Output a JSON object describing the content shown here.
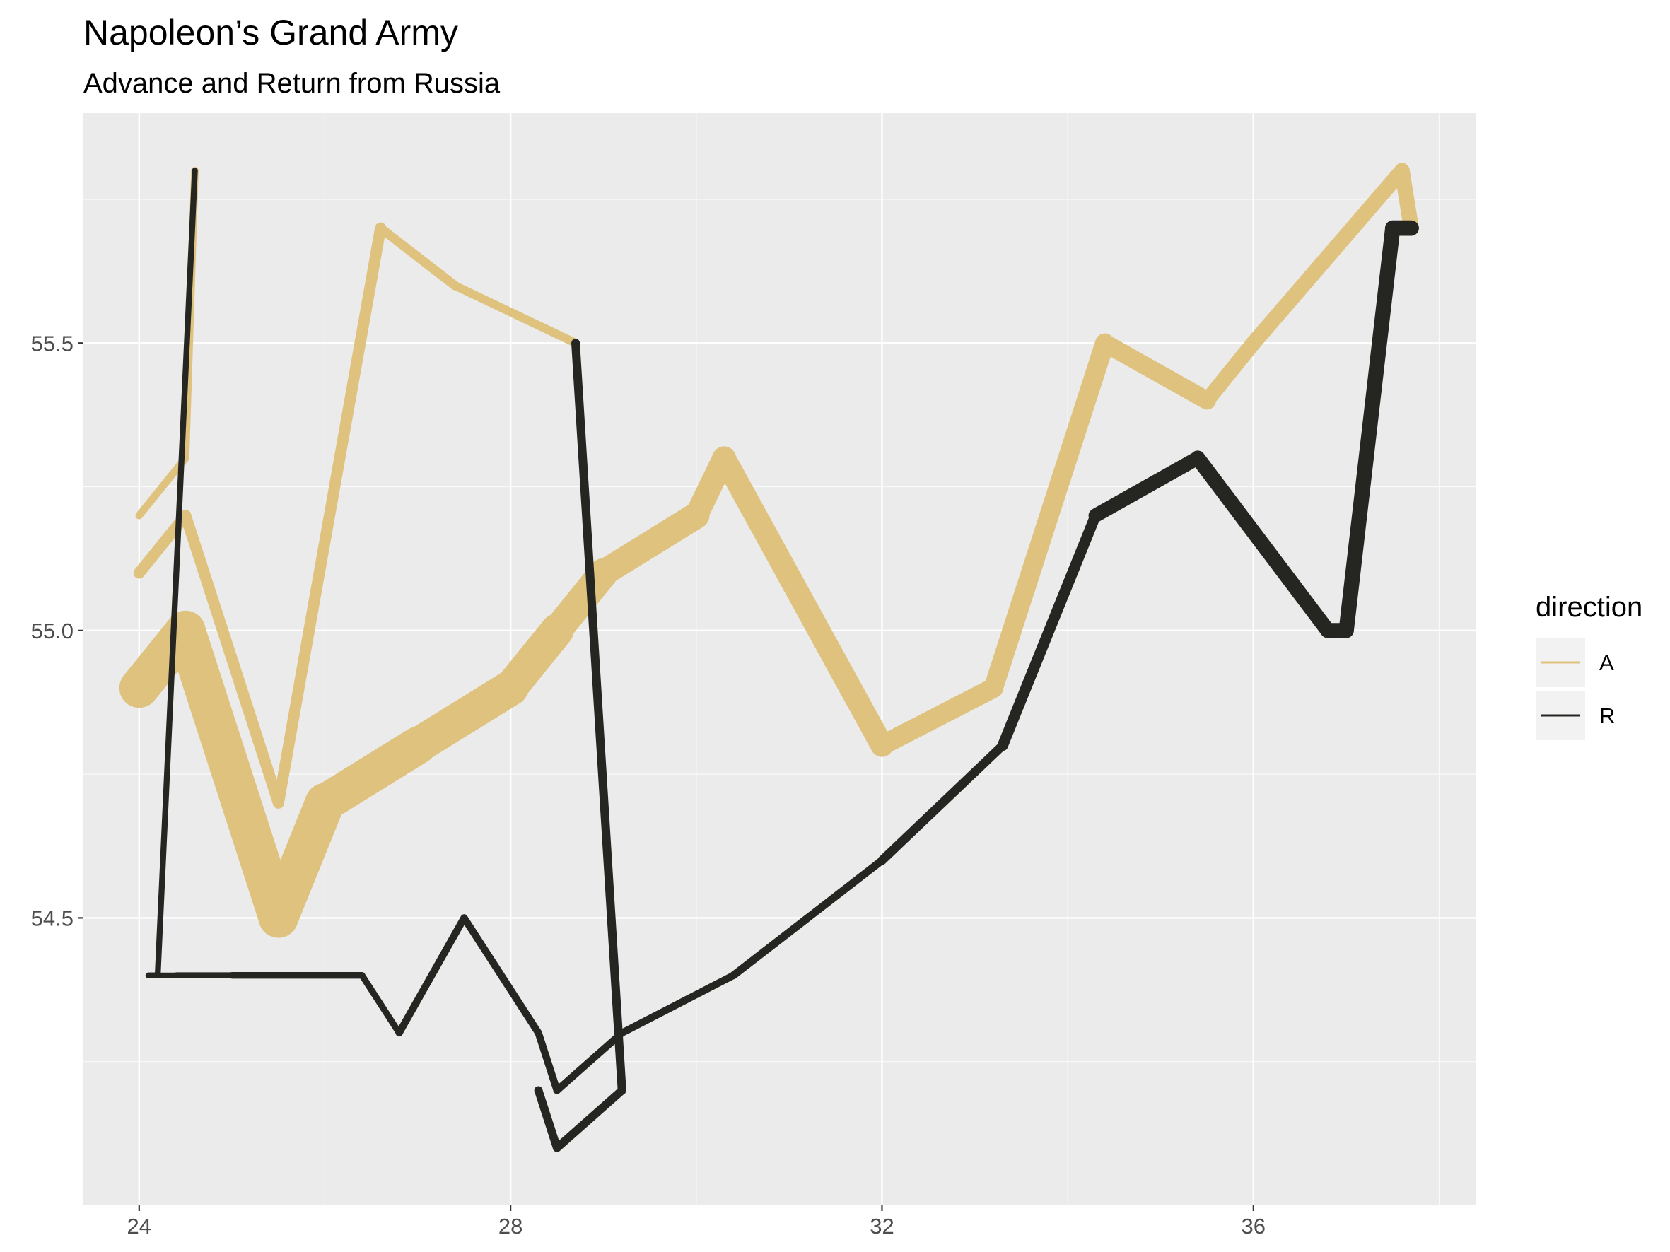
{
  "chart_data": {
    "type": "line",
    "title": "Napoleon’s Grand Army",
    "subtitle": "Advance and Return from Russia",
    "xlabel": "",
    "ylabel": "",
    "xlim": [
      23.4,
      38.4
    ],
    "ylim": [
      54.0,
      55.9
    ],
    "x_ticks": [
      24,
      28,
      32,
      36
    ],
    "y_ticks": [
      54.5,
      55.0,
      55.5
    ],
    "x_tick_labels": [
      "24",
      "28",
      "32",
      "36"
    ],
    "y_tick_labels": [
      "54.5",
      "55.0",
      "55.5"
    ],
    "grid": true,
    "legend": {
      "title": "direction",
      "position": "right",
      "entries": [
        {
          "label": "A",
          "color": "#dfc27d"
        },
        {
          "label": "R",
          "color": "#252521"
        }
      ]
    },
    "size_scale": {
      "min_survivors": 4000,
      "max_survivors": 340000,
      "min_width": 8,
      "max_width": 56
    },
    "series": [
      {
        "name": "A",
        "group": 1,
        "color": "#dfc27d",
        "points": [
          [
            24.0,
            54.9,
            340000
          ],
          [
            24.5,
            55.0,
            340000
          ],
          [
            25.5,
            54.5,
            340000
          ],
          [
            26.0,
            54.7,
            320000
          ],
          [
            27.0,
            54.8,
            300000
          ],
          [
            28.0,
            54.9,
            280000
          ],
          [
            28.5,
            55.0,
            240000
          ],
          [
            29.0,
            55.1,
            210000
          ],
          [
            30.0,
            55.2,
            180000
          ],
          [
            30.3,
            55.3,
            175000
          ],
          [
            32.0,
            54.8,
            145000
          ],
          [
            33.2,
            54.9,
            140000
          ],
          [
            34.4,
            55.5,
            127100
          ],
          [
            35.5,
            55.4,
            100000
          ],
          [
            36.0,
            55.5,
            100000
          ],
          [
            37.6,
            55.8,
            100000
          ],
          [
            37.7,
            55.7,
            100000
          ]
        ]
      },
      {
        "name": "R",
        "group": 1,
        "color": "#252521",
        "points": [
          [
            37.7,
            55.7,
            100000
          ],
          [
            37.5,
            55.7,
            98000
          ],
          [
            37.0,
            55.0,
            97000
          ],
          [
            36.8,
            55.0,
            96000
          ],
          [
            35.4,
            55.3,
            87000
          ],
          [
            34.3,
            55.2,
            55000
          ],
          [
            33.3,
            54.8,
            37000
          ],
          [
            32.0,
            54.6,
            24000
          ],
          [
            30.4,
            54.4,
            20000
          ],
          [
            29.2,
            54.3,
            20000
          ],
          [
            28.5,
            54.2,
            20000
          ],
          [
            28.3,
            54.3,
            20000
          ],
          [
            27.5,
            54.5,
            20000
          ],
          [
            26.8,
            54.3,
            12000
          ],
          [
            26.4,
            54.4,
            14000
          ],
          [
            25.0,
            54.4,
            8000
          ],
          [
            24.4,
            54.4,
            4000
          ],
          [
            24.2,
            54.4,
            4000
          ],
          [
            24.1,
            54.4,
            4000
          ]
        ]
      },
      {
        "name": "A",
        "group": 2,
        "color": "#dfc27d",
        "points": [
          [
            24.0,
            55.1,
            60000
          ],
          [
            24.5,
            55.2,
            60000
          ],
          [
            25.5,
            54.7,
            60000
          ],
          [
            26.6,
            55.7,
            40000
          ],
          [
            27.4,
            55.6,
            33000
          ],
          [
            28.7,
            55.5,
            33000
          ]
        ]
      },
      {
        "name": "R",
        "group": 2,
        "color": "#252521",
        "points": [
          [
            28.7,
            55.5,
            33000
          ],
          [
            29.2,
            54.2,
            30000
          ],
          [
            28.5,
            54.1,
            30000
          ],
          [
            28.3,
            54.2,
            28000
          ]
        ]
      },
      {
        "name": "A",
        "group": 3,
        "color": "#dfc27d",
        "points": [
          [
            24.0,
            55.2,
            22000
          ],
          [
            24.5,
            55.3,
            22000
          ],
          [
            24.6,
            55.8,
            6000
          ]
        ]
      },
      {
        "name": "R",
        "group": 3,
        "color": "#252521",
        "points": [
          [
            24.6,
            55.8,
            6000
          ],
          [
            24.2,
            54.4,
            6000
          ],
          [
            24.1,
            54.4,
            6000
          ]
        ]
      }
    ]
  }
}
